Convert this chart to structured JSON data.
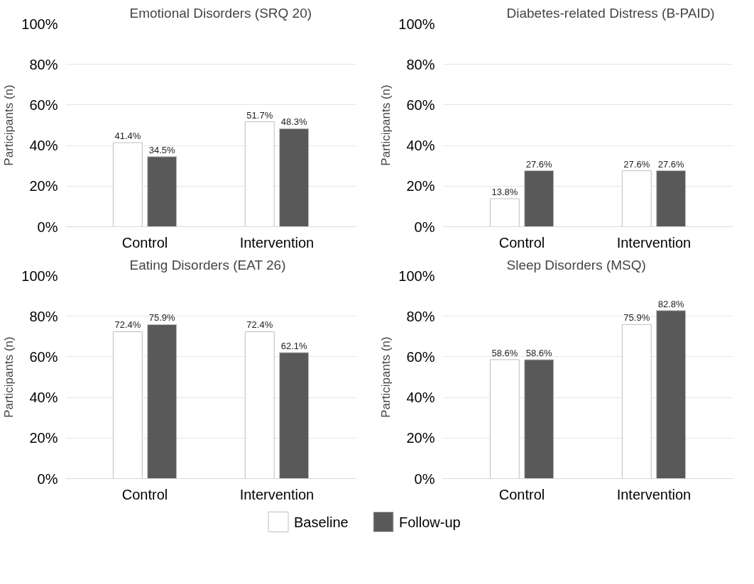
{
  "chart_data": [
    {
      "type": "bar",
      "title": "Emotional Disorders (SRQ 20)",
      "ylabel": "Participants (n)",
      "categories": [
        "Control",
        "Intervention"
      ],
      "ylim": [
        0,
        100
      ],
      "yticks": [
        {
          "value": 0,
          "label": "0%"
        },
        {
          "value": 20,
          "label": "20%"
        },
        {
          "value": 40,
          "label": "40%"
        },
        {
          "value": 60,
          "label": "60%"
        },
        {
          "value": 80,
          "label": "80%"
        },
        {
          "value": 100,
          "label": "100%"
        }
      ],
      "grid": "y",
      "series": [
        {
          "color": "#ffffff",
          "values": [
            41.4,
            51.7
          ],
          "value_labels": [
            "41.4%",
            "51.7%"
          ]
        },
        {
          "color": "#595959",
          "values": [
            34.5,
            48.3
          ],
          "value_labels": [
            "34.5%",
            "48.3%"
          ]
        }
      ]
    },
    {
      "type": "bar",
      "title": "Diabetes-related Distress (B-PAID)",
      "ylabel": "Participants (n)",
      "categories": [
        "Control",
        "Intervention"
      ],
      "ylim": [
        0,
        100
      ],
      "yticks": [
        {
          "value": 0,
          "label": "0%"
        },
        {
          "value": 20,
          "label": "20%"
        },
        {
          "value": 40,
          "label": "40%"
        },
        {
          "value": 60,
          "label": "60%"
        },
        {
          "value": 80,
          "label": "80%"
        },
        {
          "value": 100,
          "label": "100%"
        }
      ],
      "grid": "y",
      "series": [
        {
          "color": "#ffffff",
          "values": [
            13.8,
            27.6
          ],
          "value_labels": [
            "13.8%",
            "27.6%"
          ]
        },
        {
          "color": "#595959",
          "values": [
            27.6,
            27.6
          ],
          "value_labels": [
            "27.6%",
            "27.6%"
          ]
        }
      ]
    },
    {
      "type": "bar",
      "title": "Eating Disorders (EAT 26)",
      "ylabel": "Participants (n)",
      "categories": [
        "Control",
        "Intervention"
      ],
      "ylim": [
        0,
        100
      ],
      "yticks": [
        {
          "value": 0,
          "label": "0%"
        },
        {
          "value": 20,
          "label": "20%"
        },
        {
          "value": 40,
          "label": "40%"
        },
        {
          "value": 60,
          "label": "60%"
        },
        {
          "value": 80,
          "label": "80%"
        },
        {
          "value": 100,
          "label": "100%"
        }
      ],
      "grid": "y",
      "series": [
        {
          "color": "#ffffff",
          "values": [
            72.4,
            72.4
          ],
          "value_labels": [
            "72.4%",
            "72.4%"
          ]
        },
        {
          "color": "#595959",
          "values": [
            75.9,
            62.1
          ],
          "value_labels": [
            "75.9%",
            "62.1%"
          ]
        }
      ]
    },
    {
      "type": "bar",
      "title": "Sleep Disorders (MSQ)",
      "ylabel": "Participants (n)",
      "categories": [
        "Control",
        "Intervention"
      ],
      "ylim": [
        0,
        100
      ],
      "yticks": [
        {
          "value": 0,
          "label": "0%"
        },
        {
          "value": 20,
          "label": "20%"
        },
        {
          "value": 40,
          "label": "40%"
        },
        {
          "value": 60,
          "label": "60%"
        },
        {
          "value": 80,
          "label": "80%"
        },
        {
          "value": 100,
          "label": "100%"
        }
      ],
      "grid": "y",
      "legend": "bottom",
      "series": [
        {
          "name": "Baseline",
          "color": "#ffffff",
          "values": [
            58.6,
            75.9
          ],
          "value_labels": [
            "58.6%",
            "75.9%"
          ]
        },
        {
          "name": "Follow-up",
          "color": "#595959",
          "values": [
            58.6,
            82.8
          ],
          "value_labels": [
            "58.6%",
            "82.8%"
          ]
        }
      ]
    }
  ]
}
